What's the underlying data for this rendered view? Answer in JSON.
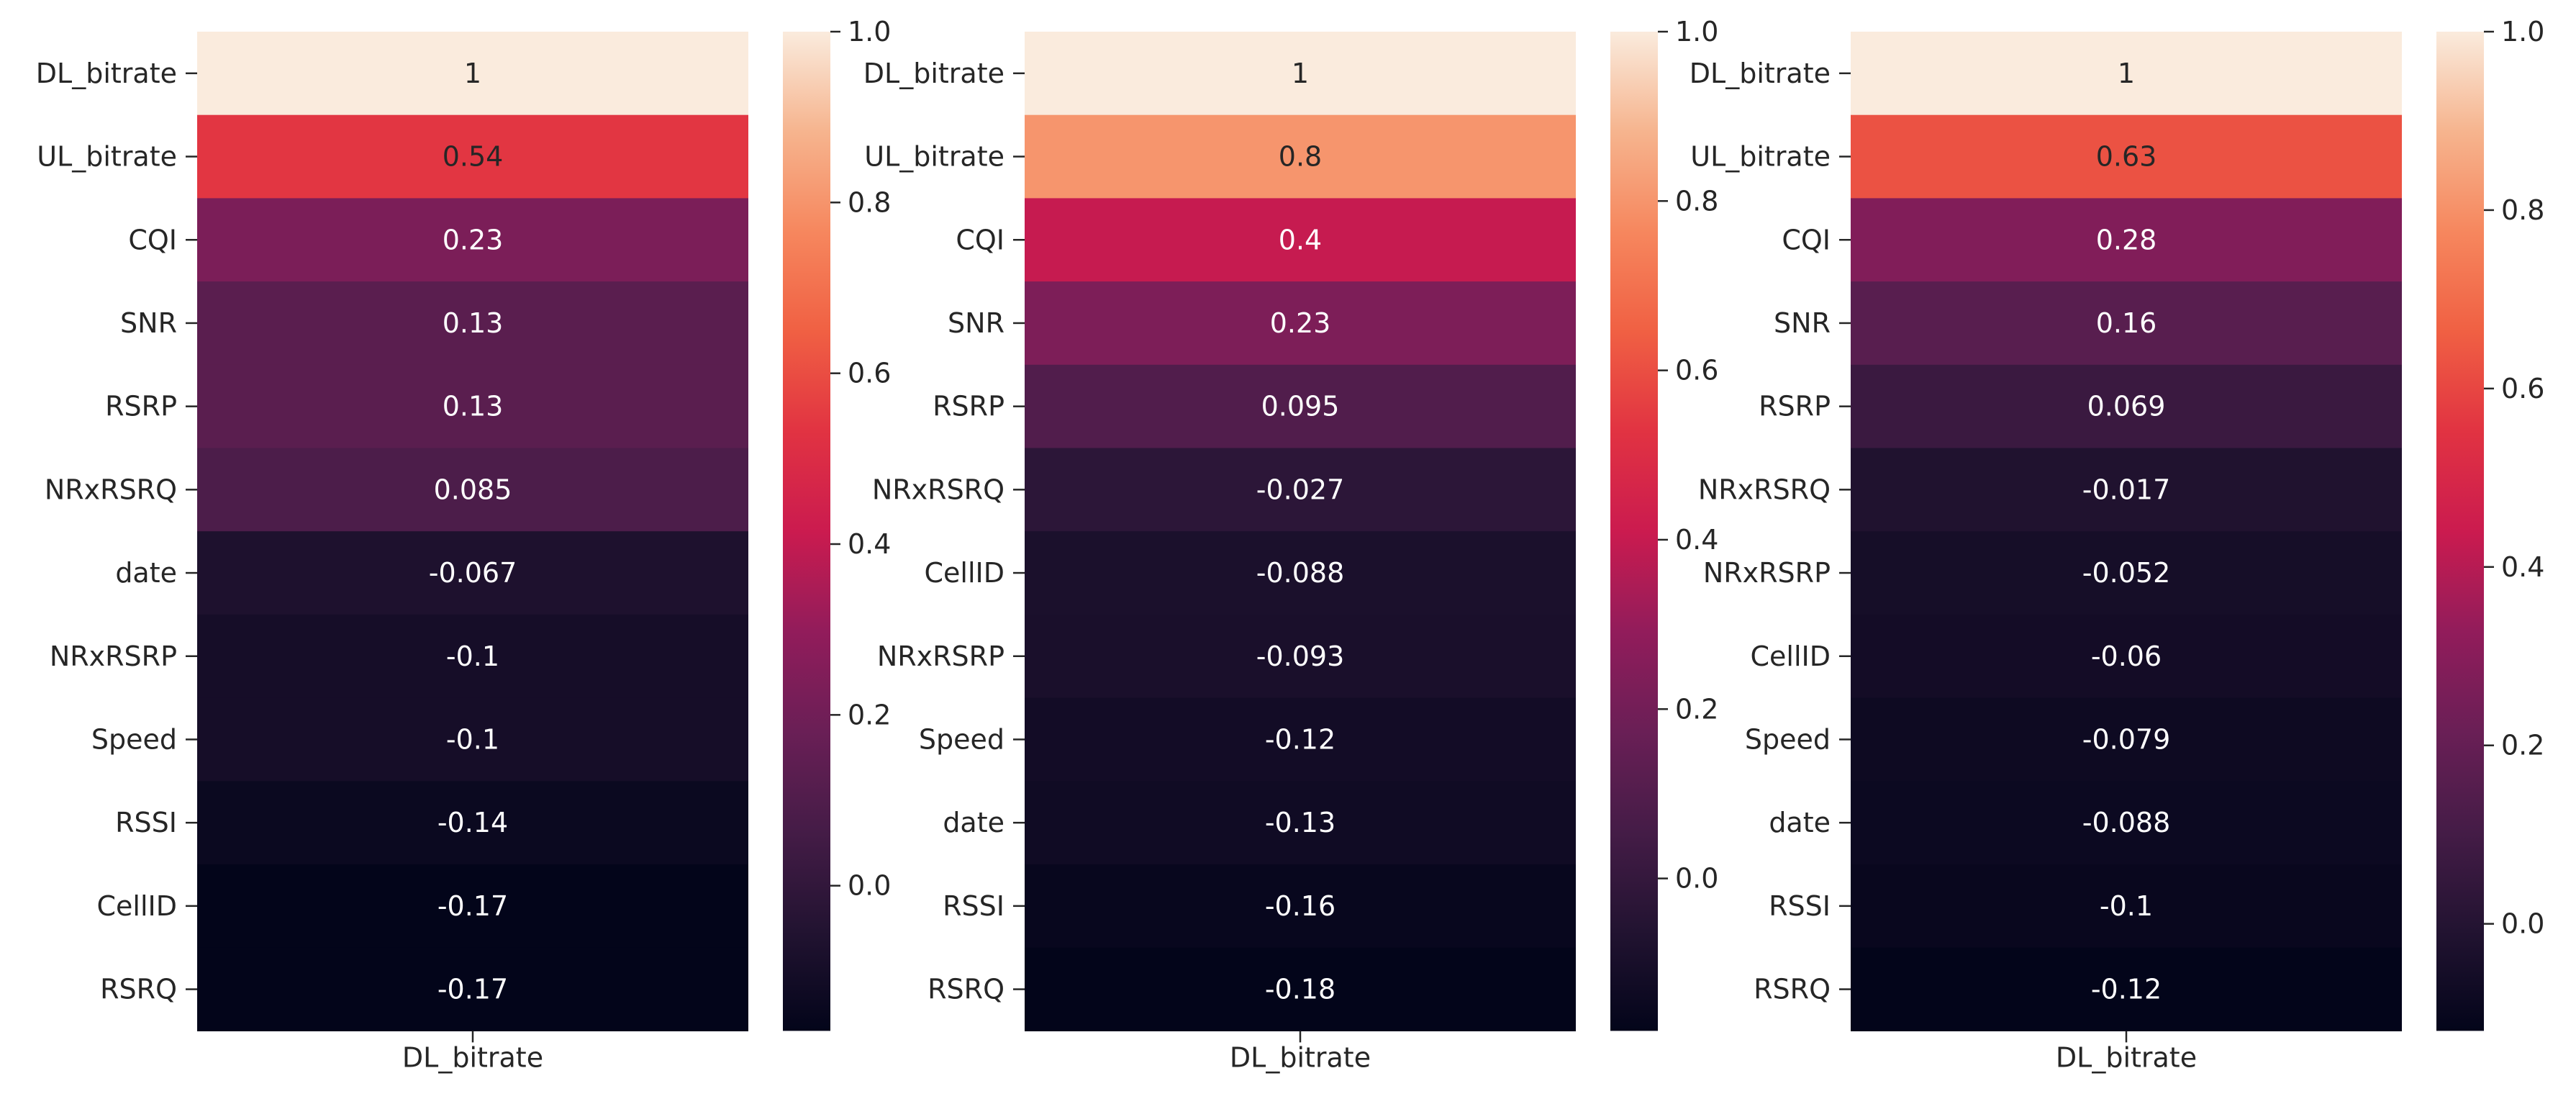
{
  "chart_data": [
    {
      "type": "heatmap",
      "column_label": "DL_bitrate",
      "rows": [
        "DL_bitrate",
        "UL_bitrate",
        "CQI",
        "SNR",
        "RSRP",
        "NRxRSRQ",
        "date",
        "NRxRSRP",
        "Speed",
        "RSSI",
        "CellID",
        "RSRQ"
      ],
      "values": [
        1,
        0.54,
        0.23,
        0.13,
        0.13,
        0.085,
        -0.067,
        -0.1,
        -0.1,
        -0.14,
        -0.17,
        -0.17
      ],
      "value_labels": [
        "1",
        "0.54",
        "0.23",
        "0.13",
        "0.13",
        "0.085",
        "-0.067",
        "-0.1",
        "-0.1",
        "-0.14",
        "-0.17",
        "-0.17"
      ],
      "colorbar": {
        "range": [
          -0.17,
          1.0
        ],
        "ticks": [
          0.0,
          0.2,
          0.4,
          0.6,
          0.8,
          1.0
        ],
        "tick_labels": [
          "0.0",
          "0.2",
          "0.4",
          "0.6",
          "0.8",
          "1.0"
        ]
      }
    },
    {
      "type": "heatmap",
      "column_label": "DL_bitrate",
      "rows": [
        "DL_bitrate",
        "UL_bitrate",
        "CQI",
        "SNR",
        "RSRP",
        "NRxRSRQ",
        "CellID",
        "NRxRSRP",
        "Speed",
        "date",
        "RSSI",
        "RSRQ"
      ],
      "values": [
        1,
        0.8,
        0.4,
        0.23,
        0.095,
        -0.027,
        -0.088,
        -0.093,
        -0.12,
        -0.13,
        -0.16,
        -0.18
      ],
      "value_labels": [
        "1",
        "0.8",
        "0.4",
        "0.23",
        "0.095",
        "-0.027",
        "-0.088",
        "-0.093",
        "-0.12",
        "-0.13",
        "-0.16",
        "-0.18"
      ],
      "colorbar": {
        "range": [
          -0.18,
          1.0
        ],
        "ticks": [
          0.0,
          0.2,
          0.4,
          0.6,
          0.8,
          1.0
        ],
        "tick_labels": [
          "0.0",
          "0.2",
          "0.4",
          "0.6",
          "0.8",
          "1.0"
        ]
      }
    },
    {
      "type": "heatmap",
      "column_label": "DL_bitrate",
      "rows": [
        "DL_bitrate",
        "UL_bitrate",
        "CQI",
        "SNR",
        "RSRP",
        "NRxRSRQ",
        "NRxRSRP",
        "CellID",
        "Speed",
        "date",
        "RSSI",
        "RSRQ"
      ],
      "values": [
        1,
        0.63,
        0.28,
        0.16,
        0.069,
        -0.017,
        -0.052,
        -0.06,
        -0.079,
        -0.088,
        -0.1,
        -0.12
      ],
      "value_labels": [
        "1",
        "0.63",
        "0.28",
        "0.16",
        "0.069",
        "-0.017",
        "-0.052",
        "-0.06",
        "-0.079",
        "-0.088",
        "-0.1",
        "-0.12"
      ],
      "colorbar": {
        "range": [
          -0.12,
          1.0
        ],
        "ticks": [
          0.0,
          0.2,
          0.4,
          0.6,
          0.8,
          1.0
        ],
        "tick_labels": [
          "0.0",
          "0.2",
          "0.4",
          "0.6",
          "0.8",
          "1.0"
        ]
      }
    }
  ]
}
